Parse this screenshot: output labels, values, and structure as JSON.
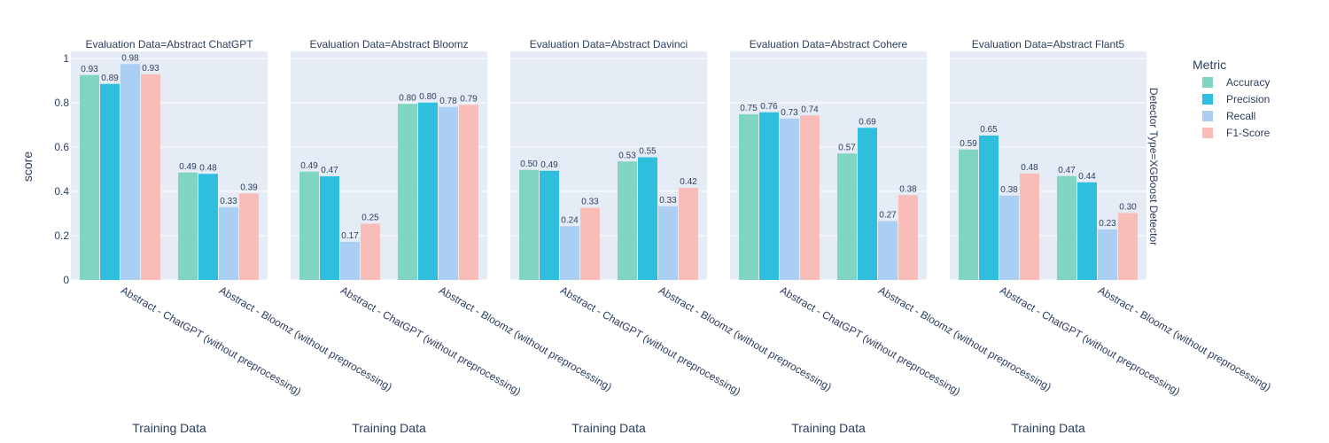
{
  "chart_data": {
    "type": "bar",
    "y_axis_title": "score",
    "x_axis_title": "Training Data",
    "ylim": [
      0,
      1
    ],
    "y_ticks": [
      "0",
      "0.2",
      "0.4",
      "0.6",
      "0.8",
      "1"
    ],
    "grid": true,
    "legend": {
      "title": "Metric",
      "position": "top-right"
    },
    "row_title": "Detector Type=XGBoost Detector",
    "categories": [
      "Abstract - ChatGPT (without preprocessing)",
      "Abstract - Bloomz (without preprocessing)"
    ],
    "series": [
      {
        "name": "Accuracy",
        "color": "#7fd5c1"
      },
      {
        "name": "Precision",
        "color": "#2fbfde"
      },
      {
        "name": "Recall",
        "color": "#abcef3"
      },
      {
        "name": "F1-Score",
        "color": "#f8bdb6"
      }
    ],
    "facets": [
      {
        "title": "Evaluation Data=Abstract ChatGPT",
        "values": [
          [
            0.925,
            0.885,
            0.975,
            0.929
          ],
          [
            0.485,
            0.479,
            0.329,
            0.391
          ]
        ],
        "labels": [
          [
            "0.93",
            "0.89",
            "0.98",
            "0.93"
          ],
          [
            "0.49",
            "0.48",
            "0.33",
            "0.39"
          ]
        ]
      },
      {
        "title": "Evaluation Data=Abstract Bloomz",
        "values": [
          [
            0.489,
            0.468,
            0.172,
            0.254
          ],
          [
            0.795,
            0.801,
            0.781,
            0.791
          ]
        ],
        "labels": [
          [
            "0.49",
            "0.47",
            "0.17",
            "0.25"
          ],
          [
            "0.80",
            "0.80",
            "0.78",
            "0.79"
          ]
        ]
      },
      {
        "title": "Evaluation Data=Abstract Davinci",
        "values": [
          [
            0.497,
            0.493,
            0.243,
            0.326
          ],
          [
            0.535,
            0.554,
            0.333,
            0.416
          ]
        ],
        "labels": [
          [
            "0.50",
            "0.49",
            "0.24",
            "0.33"
          ],
          [
            "0.53",
            "0.55",
            "0.33",
            "0.42"
          ]
        ]
      },
      {
        "title": "Evaluation Data=Abstract Cohere",
        "values": [
          [
            0.748,
            0.757,
            0.729,
            0.743
          ],
          [
            0.571,
            0.687,
            0.266,
            0.383
          ]
        ],
        "labels": [
          [
            "0.75",
            "0.76",
            "0.73",
            "0.74"
          ],
          [
            "0.57",
            "0.69",
            "0.27",
            "0.38"
          ]
        ]
      },
      {
        "title": "Evaluation Data=Abstract Flant5",
        "values": [
          [
            0.589,
            0.652,
            0.381,
            0.481
          ],
          [
            0.469,
            0.441,
            0.228,
            0.302
          ]
        ],
        "labels": [
          [
            "0.59",
            "0.65",
            "0.38",
            "0.48"
          ],
          [
            "0.47",
            "0.44",
            "0.23",
            "0.30"
          ]
        ]
      }
    ]
  }
}
